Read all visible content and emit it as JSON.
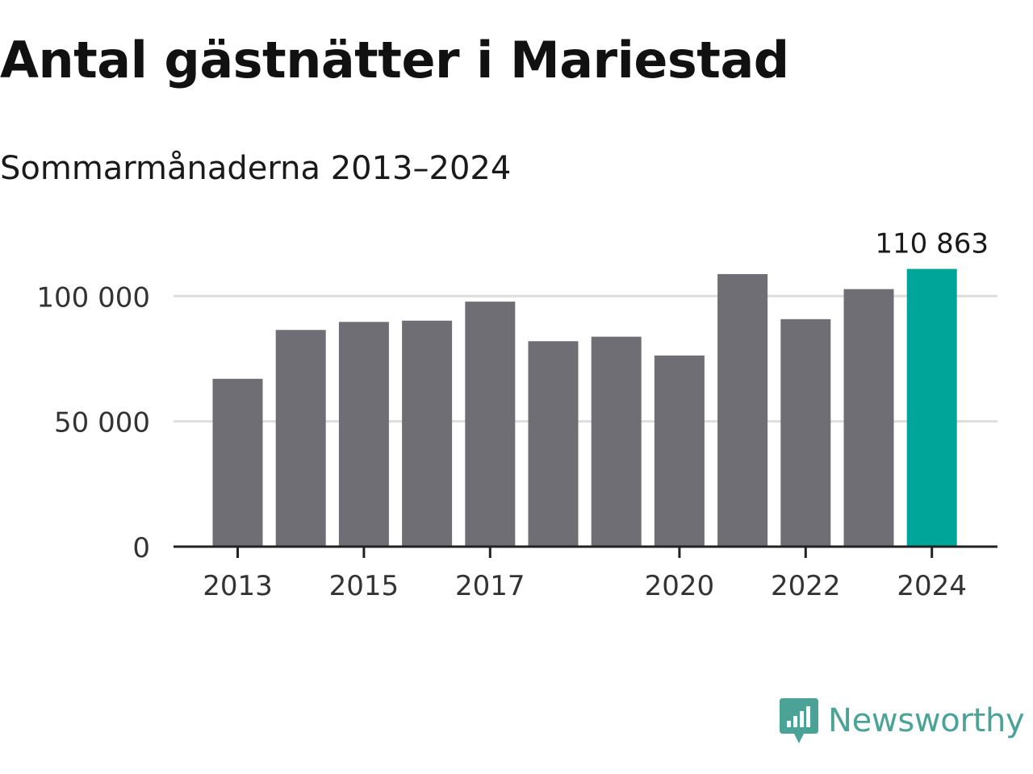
{
  "title": "Antal gästnätter i Mariestad",
  "subtitle": "Sommarmånaderna 2013–2024",
  "brand": {
    "name": "Newsworthy",
    "icon": "newsworthy-logo-icon",
    "color": "#4aa396"
  },
  "colors": {
    "bar": "#6f6e75",
    "highlight": "#00a59a",
    "grid": "#dddddd",
    "axis": "#222222"
  },
  "chart_data": {
    "type": "bar",
    "x": [
      2013,
      2014,
      2015,
      2016,
      2017,
      2018,
      2019,
      2020,
      2021,
      2022,
      2023,
      2024
    ],
    "values": [
      67000,
      86500,
      89700,
      90200,
      97800,
      82000,
      83800,
      76300,
      108800,
      90800,
      102800,
      110863
    ],
    "highlight_index": 11,
    "data_labels": [
      {
        "index": 11,
        "text": "110 863"
      }
    ],
    "xticks": [
      2013,
      2015,
      2017,
      2020,
      2022,
      2024
    ],
    "xtick_labels": [
      "2013",
      "2015",
      "2017",
      "2020",
      "2022",
      "2024"
    ],
    "yticks": [
      0,
      50000,
      100000
    ],
    "ytick_labels": [
      "0",
      "50 000",
      "100 000"
    ],
    "ylim": [
      0,
      112000
    ],
    "grid": true,
    "legend": "none",
    "xlabel": "",
    "ylabel": ""
  }
}
